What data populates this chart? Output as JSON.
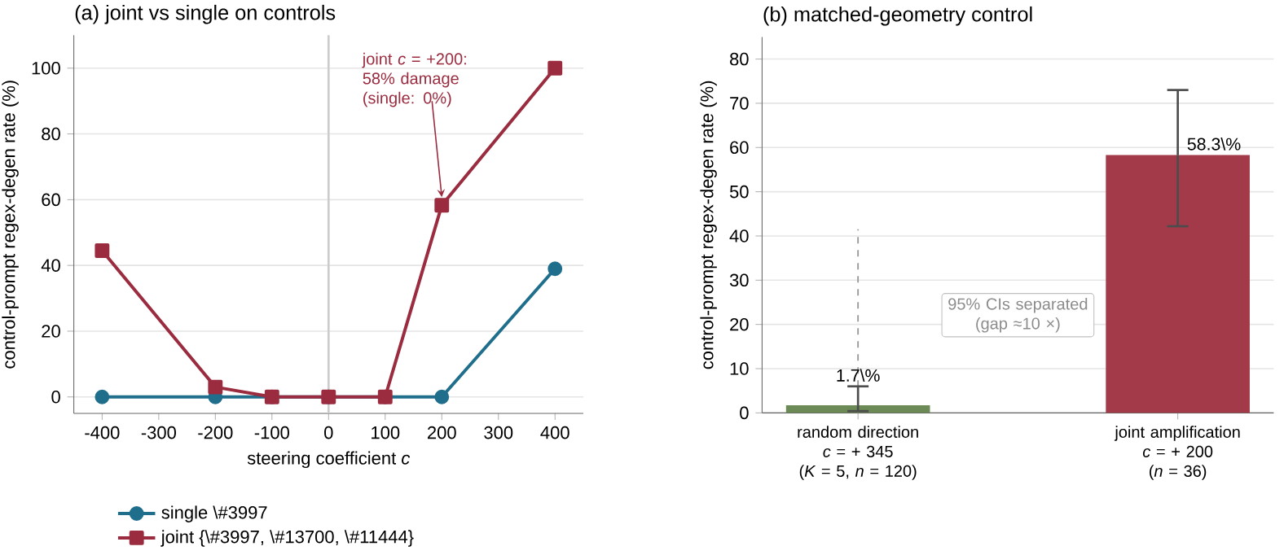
{
  "chart_data": [
    {
      "type": "line",
      "title": "(a) joint vs single on controls",
      "xlabel": "steering coefficient *c*",
      "ylabel": "control-prompt regex-degen rate (%)",
      "x": [
        -400,
        -200,
        -100,
        0,
        100,
        200,
        400
      ],
      "series": [
        {
          "name": "single \\#3997",
          "color": "#1f6e8c",
          "marker": "circle",
          "values": [
            0,
            0,
            0,
            0,
            0,
            0,
            39
          ]
        },
        {
          "name": "joint {\\#3997, \\#13700, \\#11444}",
          "color": "#9b2c3f",
          "marker": "square",
          "values": [
            44.5,
            3,
            0,
            0,
            0,
            58.3,
            100
          ]
        }
      ],
      "xlim": [
        -450,
        450
      ],
      "xticks": [
        -400,
        -300,
        -200,
        -100,
        0,
        100,
        200,
        300,
        400
      ],
      "ylim": [
        -5,
        110
      ],
      "yticks": [
        0,
        20,
        40,
        60,
        80,
        100
      ],
      "grid": "y",
      "legend": "bottom",
      "ref_lines": [
        {
          "axis": "x",
          "value": 0,
          "color": "#cccccc"
        }
      ],
      "annotations": [
        {
          "text": "joint *c* = +200:\n58% damage\n(single: 0%)",
          "x": 200,
          "y": 58.3
        }
      ]
    },
    {
      "type": "bar",
      "title": "(b) matched-geometry control",
      "ylabel": "control-prompt regex-degen rate (%)",
      "categories": [
        "random direction\n*c* = + 345\n(*K* = 5, *n* = 120)",
        "joint amplification\n*c* = + 200\n(*n* = 36)"
      ],
      "series": [
        {
          "type": "bar",
          "colors": [
            "#6b8a55",
            "#a33a4a"
          ],
          "values": [
            1.7,
            58.3
          ],
          "errors": [
            [
              0.4,
              6
            ],
            [
              42.2,
              73
            ]
          ],
          "value_labels": [
            "1.7\\%",
            "58.3\\%"
          ]
        },
        {
          "type": "line",
          "color": "#999999",
          "line_style": "dashed",
          "marker": "none",
          "x": [
            "random direction\n*c* = + 345\n(*K* = 5, *n* = 120)",
            "random direction\n*c* = + 345\n(*K* = 5, *n* = 120)"
          ],
          "values": [
            0,
            41.5
          ]
        }
      ],
      "ylim": [
        0,
        85
      ],
      "yticks": [
        0,
        10,
        20,
        30,
        40,
        50,
        60,
        70,
        80
      ],
      "grid": "y",
      "annotations": [
        "95% CIs separated\n(gap ≈10 ×)"
      ]
    }
  ]
}
